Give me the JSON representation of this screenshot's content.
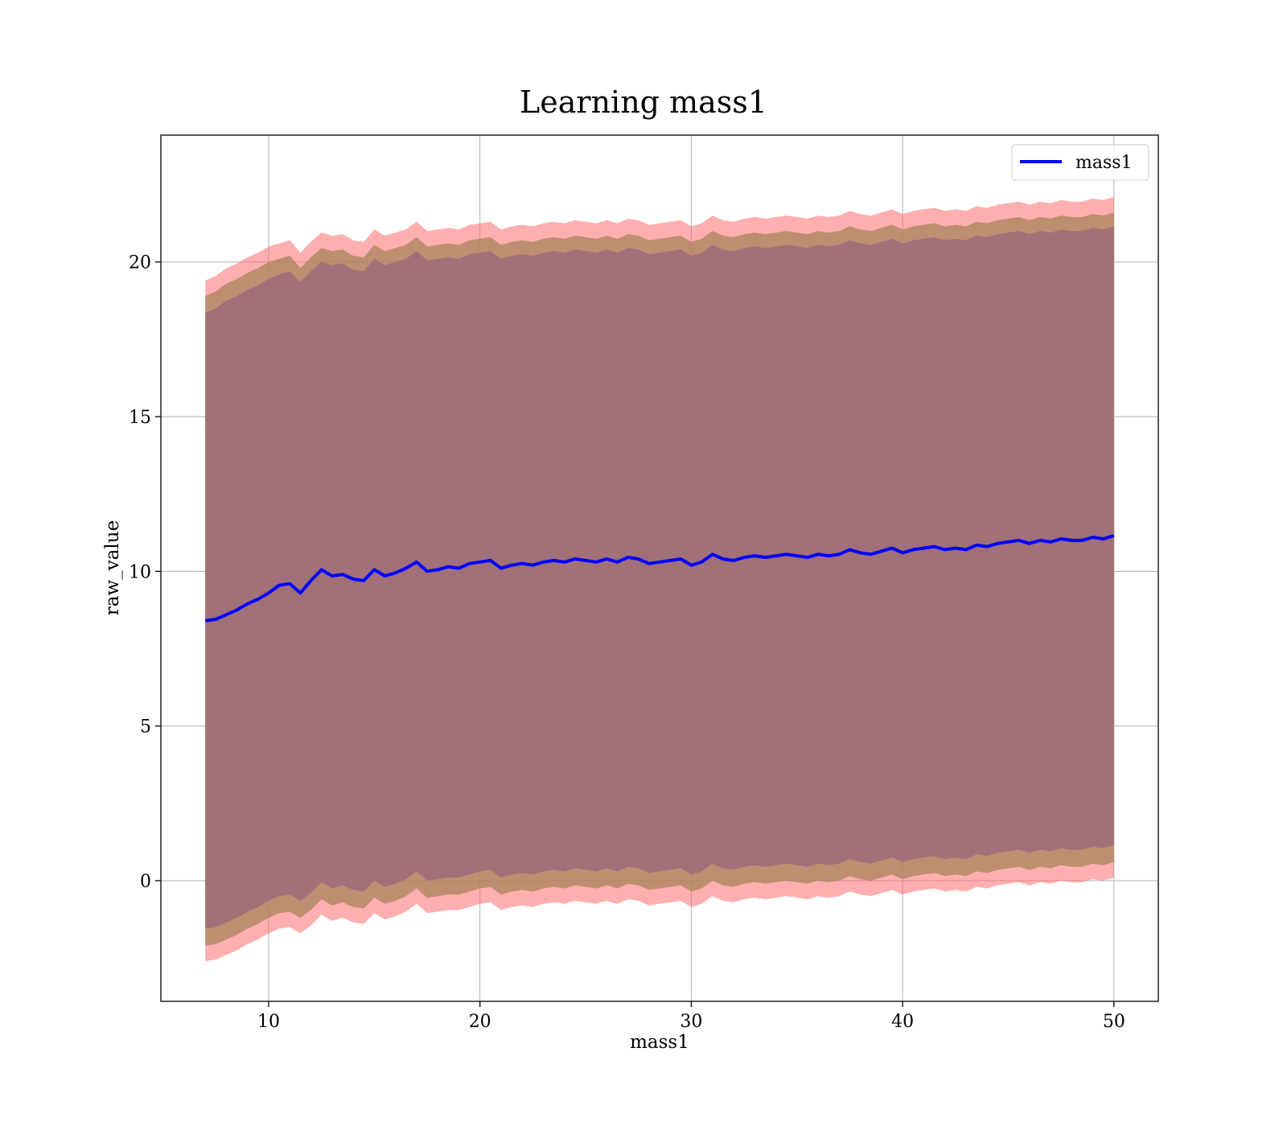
{
  "chart_data": {
    "type": "line",
    "title": "Learning mass1",
    "xlabel": "mass1",
    "ylabel": "raw_value",
    "xlim": [
      4.9,
      52.1
    ],
    "ylim": [
      -3.9,
      24.1
    ],
    "xticks": [
      10,
      20,
      30,
      40,
      50
    ],
    "yticks": [
      0,
      5,
      10,
      15,
      20
    ],
    "grid": true,
    "legend_position": "top-right",
    "series": [
      {
        "name": "mass1",
        "color": "#0000ff",
        "x": [
          7.0,
          7.5,
          8.0,
          8.5,
          9.0,
          9.5,
          10.0,
          10.5,
          11.0,
          11.5,
          12.0,
          12.5,
          13.0,
          13.5,
          14.0,
          14.5,
          15.0,
          15.5,
          16.0,
          16.5,
          17.0,
          17.5,
          18.0,
          18.5,
          19.0,
          19.5,
          20.0,
          20.5,
          21.0,
          21.5,
          22.0,
          22.5,
          23.0,
          23.5,
          24.0,
          24.5,
          25.0,
          25.5,
          26.0,
          26.5,
          27.0,
          27.5,
          28.0,
          28.5,
          29.0,
          29.5,
          30.0,
          30.5,
          31.0,
          31.5,
          32.0,
          32.5,
          33.0,
          33.5,
          34.0,
          34.5,
          35.0,
          35.5,
          36.0,
          36.5,
          37.0,
          37.5,
          38.0,
          38.5,
          39.0,
          39.5,
          40.0,
          40.5,
          41.0,
          41.5,
          42.0,
          42.5,
          43.0,
          43.5,
          44.0,
          44.5,
          45.0,
          45.5,
          46.0,
          46.5,
          47.0,
          47.5,
          48.0,
          48.5,
          49.0,
          49.5,
          50.0
        ],
        "y": [
          8.4,
          8.45,
          8.6,
          8.75,
          8.95,
          9.1,
          9.3,
          9.55,
          9.6,
          9.3,
          9.7,
          10.05,
          9.85,
          9.9,
          9.75,
          9.7,
          10.05,
          9.85,
          9.95,
          10.1,
          10.3,
          10.0,
          10.05,
          10.15,
          10.1,
          10.25,
          10.3,
          10.35,
          10.1,
          10.2,
          10.25,
          10.2,
          10.3,
          10.35,
          10.3,
          10.4,
          10.35,
          10.3,
          10.4,
          10.3,
          10.45,
          10.4,
          10.25,
          10.3,
          10.35,
          10.4,
          10.2,
          10.3,
          10.55,
          10.4,
          10.35,
          10.45,
          10.5,
          10.45,
          10.5,
          10.55,
          10.5,
          10.45,
          10.55,
          10.5,
          10.55,
          10.7,
          10.6,
          10.55,
          10.65,
          10.75,
          10.6,
          10.7,
          10.75,
          10.8,
          10.7,
          10.75,
          10.7,
          10.85,
          10.8,
          10.9,
          10.95,
          11.0,
          10.9,
          11.0,
          10.95,
          11.05,
          11.0,
          11.0,
          11.1,
          11.05,
          11.15
        ]
      }
    ],
    "bands": [
      {
        "color": "#ff6e6e",
        "opacity": 0.55,
        "upper": [
          19.4,
          19.55,
          19.8,
          19.95,
          20.15,
          20.3,
          20.5,
          20.6,
          20.7,
          20.3,
          20.65,
          20.95,
          20.85,
          20.9,
          20.7,
          20.65,
          21.05,
          20.85,
          20.95,
          21.05,
          21.3,
          21.0,
          21.05,
          21.1,
          21.05,
          21.2,
          21.25,
          21.3,
          21.05,
          21.15,
          21.2,
          21.15,
          21.25,
          21.3,
          21.25,
          21.35,
          21.3,
          21.25,
          21.35,
          21.25,
          21.4,
          21.35,
          21.2,
          21.25,
          21.3,
          21.35,
          21.15,
          21.25,
          21.5,
          21.35,
          21.3,
          21.4,
          21.45,
          21.4,
          21.45,
          21.5,
          21.45,
          21.4,
          21.5,
          21.45,
          21.5,
          21.65,
          21.55,
          21.5,
          21.6,
          21.7,
          21.55,
          21.65,
          21.7,
          21.75,
          21.65,
          21.7,
          21.65,
          21.8,
          21.75,
          21.85,
          21.9,
          21.95,
          21.85,
          21.95,
          21.9,
          22.0,
          21.95,
          21.95,
          22.05,
          22.0,
          22.1
        ],
        "lower": [
          -2.6,
          -2.55,
          -2.4,
          -2.25,
          -2.05,
          -1.9,
          -1.7,
          -1.55,
          -1.5,
          -1.7,
          -1.45,
          -1.1,
          -1.3,
          -1.2,
          -1.35,
          -1.4,
          -1.05,
          -1.25,
          -1.15,
          -1.0,
          -0.75,
          -1.05,
          -1.0,
          -0.95,
          -0.95,
          -0.85,
          -0.75,
          -0.7,
          -0.95,
          -0.85,
          -0.8,
          -0.85,
          -0.75,
          -0.7,
          -0.75,
          -0.65,
          -0.7,
          -0.75,
          -0.65,
          -0.75,
          -0.6,
          -0.65,
          -0.8,
          -0.75,
          -0.7,
          -0.65,
          -0.85,
          -0.75,
          -0.5,
          -0.65,
          -0.7,
          -0.6,
          -0.55,
          -0.6,
          -0.55,
          -0.5,
          -0.55,
          -0.6,
          -0.5,
          -0.55,
          -0.5,
          -0.35,
          -0.45,
          -0.5,
          -0.4,
          -0.3,
          -0.45,
          -0.35,
          -0.3,
          -0.25,
          -0.35,
          -0.3,
          -0.35,
          -0.2,
          -0.25,
          -0.15,
          -0.1,
          -0.05,
          -0.15,
          -0.05,
          -0.1,
          0.0,
          -0.05,
          -0.05,
          0.05,
          0.0,
          0.1
        ]
      },
      {
        "color": "#a8835c",
        "opacity": 0.75,
        "upper": [
          18.9,
          19.05,
          19.3,
          19.45,
          19.65,
          19.8,
          20.0,
          20.1,
          20.2,
          19.8,
          20.15,
          20.45,
          20.35,
          20.4,
          20.2,
          20.15,
          20.55,
          20.35,
          20.45,
          20.55,
          20.8,
          20.5,
          20.55,
          20.6,
          20.55,
          20.7,
          20.75,
          20.8,
          20.55,
          20.65,
          20.7,
          20.65,
          20.75,
          20.8,
          20.75,
          20.85,
          20.8,
          20.75,
          20.85,
          20.75,
          20.9,
          20.85,
          20.7,
          20.75,
          20.8,
          20.85,
          20.65,
          20.75,
          21.0,
          20.85,
          20.8,
          20.9,
          20.95,
          20.9,
          20.95,
          21.0,
          20.95,
          20.9,
          21.0,
          20.95,
          21.0,
          21.15,
          21.05,
          21.0,
          21.1,
          21.2,
          21.05,
          21.15,
          21.2,
          21.25,
          21.15,
          21.2,
          21.15,
          21.3,
          21.25,
          21.35,
          21.4,
          21.45,
          21.35,
          21.45,
          21.4,
          21.5,
          21.45,
          21.45,
          21.55,
          21.5,
          21.6
        ],
        "lower": [
          -2.1,
          -2.05,
          -1.9,
          -1.75,
          -1.55,
          -1.4,
          -1.2,
          -1.05,
          -1.0,
          -1.2,
          -0.95,
          -0.6,
          -0.8,
          -0.7,
          -0.85,
          -0.9,
          -0.55,
          -0.75,
          -0.65,
          -0.5,
          -0.25,
          -0.55,
          -0.5,
          -0.45,
          -0.45,
          -0.35,
          -0.25,
          -0.2,
          -0.45,
          -0.35,
          -0.3,
          -0.35,
          -0.25,
          -0.2,
          -0.25,
          -0.15,
          -0.2,
          -0.25,
          -0.15,
          -0.25,
          -0.1,
          -0.15,
          -0.3,
          -0.25,
          -0.2,
          -0.15,
          -0.35,
          -0.25,
          0.0,
          -0.15,
          -0.2,
          -0.1,
          -0.05,
          -0.1,
          -0.05,
          0.0,
          -0.05,
          -0.1,
          0.0,
          -0.05,
          0.0,
          0.15,
          0.05,
          0.0,
          0.1,
          0.2,
          0.05,
          0.15,
          0.2,
          0.25,
          0.15,
          0.2,
          0.15,
          0.3,
          0.25,
          0.35,
          0.4,
          0.45,
          0.35,
          0.45,
          0.4,
          0.5,
          0.45,
          0.45,
          0.55,
          0.5,
          0.6
        ]
      },
      {
        "color": "#a27079",
        "opacity": 1.0,
        "upper": [
          18.35,
          18.5,
          18.75,
          18.9,
          19.1,
          19.25,
          19.45,
          19.6,
          19.7,
          19.35,
          19.7,
          20.0,
          19.9,
          19.95,
          19.75,
          19.7,
          20.1,
          19.9,
          20.0,
          20.1,
          20.35,
          20.05,
          20.1,
          20.15,
          20.1,
          20.25,
          20.3,
          20.35,
          20.1,
          20.2,
          20.25,
          20.2,
          20.3,
          20.35,
          20.3,
          20.4,
          20.35,
          20.3,
          20.4,
          20.3,
          20.45,
          20.4,
          20.25,
          20.3,
          20.35,
          20.4,
          20.2,
          20.3,
          20.55,
          20.4,
          20.35,
          20.45,
          20.5,
          20.45,
          20.5,
          20.55,
          20.5,
          20.45,
          20.55,
          20.5,
          20.55,
          20.7,
          20.6,
          20.55,
          20.65,
          20.75,
          20.6,
          20.7,
          20.75,
          20.8,
          20.7,
          20.75,
          20.7,
          20.85,
          20.8,
          20.9,
          20.95,
          21.0,
          20.9,
          21.0,
          20.95,
          21.05,
          21.0,
          21.0,
          21.1,
          21.05,
          21.15
        ],
        "lower": [
          -1.55,
          -1.5,
          -1.35,
          -1.2,
          -1.0,
          -0.85,
          -0.65,
          -0.5,
          -0.45,
          -0.65,
          -0.4,
          -0.05,
          -0.25,
          -0.15,
          -0.3,
          -0.35,
          0.0,
          -0.2,
          -0.1,
          0.05,
          0.3,
          0.0,
          0.05,
          0.1,
          0.1,
          0.2,
          0.3,
          0.35,
          0.1,
          0.2,
          0.25,
          0.2,
          0.3,
          0.35,
          0.3,
          0.4,
          0.35,
          0.3,
          0.4,
          0.3,
          0.45,
          0.4,
          0.25,
          0.3,
          0.35,
          0.4,
          0.2,
          0.3,
          0.55,
          0.4,
          0.35,
          0.45,
          0.5,
          0.45,
          0.5,
          0.55,
          0.5,
          0.45,
          0.55,
          0.5,
          0.55,
          0.7,
          0.6,
          0.55,
          0.65,
          0.75,
          0.6,
          0.7,
          0.75,
          0.8,
          0.7,
          0.75,
          0.7,
          0.85,
          0.8,
          0.9,
          0.95,
          1.0,
          0.9,
          1.0,
          0.95,
          1.05,
          1.0,
          1.0,
          1.1,
          1.05,
          1.15
        ]
      }
    ]
  }
}
